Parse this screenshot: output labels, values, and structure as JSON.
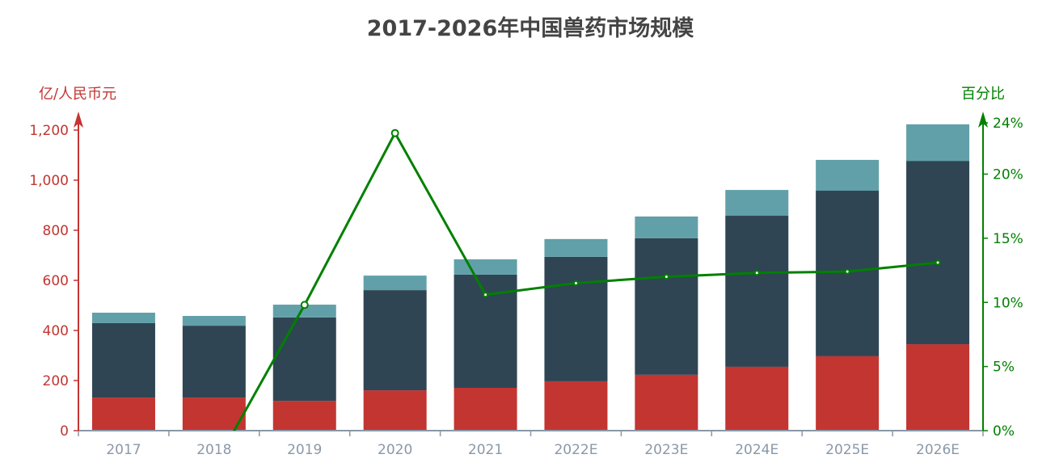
{
  "chart_data": {
    "type": "bar",
    "title": "2017-2026年中国兽药市场规模",
    "categories": [
      "2017",
      "2018",
      "2019",
      "2020",
      "2021",
      "2022E",
      "2023E",
      "2024E",
      "2025E",
      "2026E"
    ],
    "ylabel": "亿/人民币元",
    "y2label": "百分比",
    "ylim": [
      0,
      1200
    ],
    "yticks": [
      "0",
      "200",
      "400",
      "600",
      "800",
      "1,000",
      "1,200"
    ],
    "y2lim": [
      0,
      24
    ],
    "y2ticks": [
      "0%",
      "5%",
      "10%",
      "15%",
      "20%",
      "24%"
    ],
    "grid": false,
    "stacked": true,
    "series": [
      {
        "type": "bar",
        "color": "#c23531",
        "values": [
          132,
          132,
          119,
          161,
          171,
          197,
          223,
          255,
          297,
          345
        ]
      },
      {
        "type": "bar",
        "color": "#2f4554",
        "values": [
          297,
          287,
          333,
          400,
          452,
          497,
          545,
          603,
          661,
          732
        ]
      },
      {
        "type": "bar",
        "color": "#61a0a8",
        "values": [
          42,
          39,
          51,
          58,
          61,
          71,
          87,
          103,
          123,
          146
        ]
      },
      {
        "type": "line",
        "axis": "right",
        "unit": "%",
        "color": "#008000",
        "values": [
          null,
          -2.8,
          9.8,
          23.2,
          10.6,
          11.5,
          12.0,
          12.3,
          12.4,
          13.1
        ]
      }
    ],
    "colors": {
      "left_axis": "#c23531",
      "right_axis": "#008000",
      "x_axis": "#8a98a8"
    }
  }
}
